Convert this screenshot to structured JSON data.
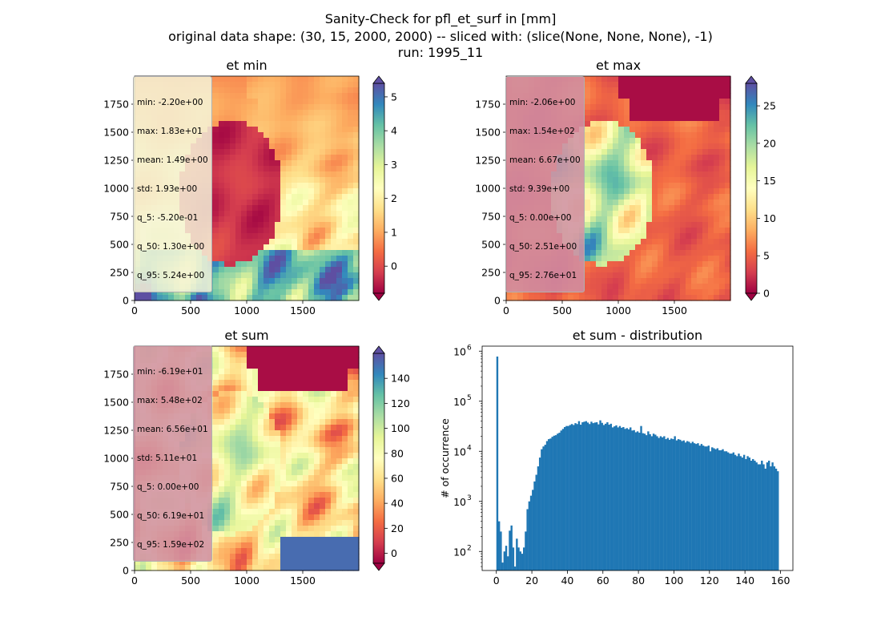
{
  "figure": {
    "title_lines": [
      "Sanity-Check for pfl_et_surf in [mm]",
      "original data shape: (30, 15, 2000, 2000) -- sliced with: (slice(None, None, None), -1)",
      "run: 1995_11"
    ]
  },
  "colors": {
    "hist_bar": "#1f77b4",
    "colormap": "Spectral",
    "colormap_stops": [
      "#9e0142",
      "#d53e4f",
      "#f46d43",
      "#fdae61",
      "#fee08b",
      "#ffffbf",
      "#e6f598",
      "#abdda4",
      "#66c2a5",
      "#3288bd",
      "#5e4fa2"
    ],
    "stats_box_light": "#f5f3d8",
    "stats_box_pink": "#cf8ea4"
  },
  "chart_data": [
    {
      "type": "heatmap",
      "title": "et min",
      "xlim": [
        0,
        2000
      ],
      "ylim": [
        0,
        2000
      ],
      "xticks": [
        "0",
        "500",
        "1000",
        "1500"
      ],
      "yticks": [
        "0",
        "250",
        "500",
        "750",
        "1000",
        "1250",
        "1500",
        "1750"
      ],
      "colorbar": {
        "range": [
          -0.8,
          5.4
        ],
        "ticks": [
          "0",
          "1",
          "2",
          "3",
          "4",
          "5"
        ],
        "tick_values": [
          0,
          1,
          2,
          3,
          4,
          5
        ],
        "extend": "both"
      },
      "stats": [
        "min: -2.20e+00",
        "max: 1.83e+01",
        "mean: 1.49e+00",
        "std: 1.93e+00",
        "q_5: -5.20e-01",
        "q_50: 1.30e+00",
        "q_95: 5.24e+00"
      ]
    },
    {
      "type": "heatmap",
      "title": "et max",
      "xlim": [
        0,
        2000
      ],
      "ylim": [
        0,
        2000
      ],
      "xticks": [
        "0",
        "500",
        "1000",
        "1500"
      ],
      "yticks": [
        "0",
        "250",
        "500",
        "750",
        "1000",
        "1250",
        "1500",
        "1750"
      ],
      "colorbar": {
        "range": [
          0,
          28
        ],
        "ticks": [
          "0",
          "5",
          "10",
          "15",
          "20",
          "25"
        ],
        "tick_values": [
          0,
          5,
          10,
          15,
          20,
          25
        ],
        "extend": "both"
      },
      "stats": [
        "min: -2.06e+00",
        "max: 1.54e+02",
        "mean: 6.67e+00",
        "std: 9.39e+00",
        "q_5: 0.00e+00",
        "q_50: 2.51e+00",
        "q_95: 2.76e+01"
      ]
    },
    {
      "type": "heatmap",
      "title": "et sum",
      "xlim": [
        0,
        2000
      ],
      "ylim": [
        0,
        2000
      ],
      "xticks": [
        "0",
        "500",
        "1000",
        "1500"
      ],
      "yticks": [
        "0",
        "250",
        "500",
        "750",
        "1000",
        "1250",
        "1500",
        "1750"
      ],
      "colorbar": {
        "range": [
          -8,
          160
        ],
        "ticks": [
          "0",
          "20",
          "40",
          "60",
          "80",
          "100",
          "120",
          "140"
        ],
        "tick_values": [
          0,
          20,
          40,
          60,
          80,
          100,
          120,
          140
        ],
        "extend": "both"
      },
      "stats": [
        "min: -6.19e+01",
        "max: 5.48e+02",
        "mean: 6.56e+01",
        "std: 5.11e+01",
        "q_5: 0.00e+00",
        "q_50: 6.19e+01",
        "q_95: 1.59e+02"
      ]
    },
    {
      "type": "bar",
      "title": "et sum - distribution",
      "ylabel": "# of occurrence",
      "yscale": "log",
      "xlim": [
        -8,
        167
      ],
      "ylim_log10": [
        1.62,
        6.1
      ],
      "xticks": [
        "0",
        "20",
        "40",
        "60",
        "80",
        "100",
        "120",
        "140",
        "160"
      ],
      "xtick_values": [
        0,
        20,
        40,
        60,
        80,
        100,
        120,
        140,
        160
      ],
      "yticks_exp": [
        2,
        3,
        4,
        5,
        6
      ],
      "bin_width": 1,
      "bin_starts": [
        0,
        1,
        2,
        3,
        4,
        5,
        6,
        7,
        8,
        9,
        10,
        11,
        12,
        13,
        14,
        15,
        16,
        17,
        18,
        19,
        20,
        21,
        22,
        23,
        24,
        25,
        26,
        27,
        28,
        29,
        30,
        31,
        32,
        33,
        34,
        35,
        36,
        37,
        38,
        39,
        40,
        41,
        42,
        43,
        44,
        45,
        46,
        47,
        48,
        49,
        50,
        51,
        52,
        53,
        54,
        55,
        56,
        57,
        58,
        59,
        60,
        61,
        62,
        63,
        64,
        65,
        66,
        67,
        68,
        69,
        70,
        71,
        72,
        73,
        74,
        75,
        76,
        77,
        78,
        79,
        80,
        81,
        82,
        83,
        84,
        85,
        86,
        87,
        88,
        89,
        90,
        91,
        92,
        93,
        94,
        95,
        96,
        97,
        98,
        99,
        100,
        101,
        102,
        103,
        104,
        105,
        106,
        107,
        108,
        109,
        110,
        111,
        112,
        113,
        114,
        115,
        116,
        117,
        118,
        119,
        120,
        121,
        122,
        123,
        124,
        125,
        126,
        127,
        128,
        129,
        130,
        131,
        132,
        133,
        134,
        135,
        136,
        137,
        138,
        139,
        140,
        141,
        142,
        143,
        144,
        145,
        146,
        147,
        148,
        149,
        150,
        151,
        152,
        153,
        154,
        155,
        156,
        157,
        158
      ],
      "counts": [
        780000,
        400,
        250,
        60,
        100,
        130,
        80,
        260,
        330,
        120,
        50,
        180,
        120,
        100,
        90,
        120,
        250,
        700,
        1000,
        1300,
        1700,
        2500,
        3400,
        5000,
        7500,
        11000,
        12500,
        13500,
        16000,
        17500,
        18000,
        19500,
        20500,
        21000,
        22500,
        23500,
        26000,
        28000,
        30500,
        32000,
        32000,
        33500,
        35000,
        33500,
        36500,
        35000,
        40000,
        34000,
        38000,
        39000,
        40000,
        37500,
        35000,
        39000,
        36500,
        37500,
        38000,
        34500,
        41500,
        37000,
        33500,
        35500,
        38000,
        34000,
        35500,
        30000,
        31500,
        33000,
        30000,
        32000,
        29500,
        30500,
        28000,
        29000,
        27500,
        30000,
        26000,
        26500,
        24000,
        25000,
        23500,
        32000,
        23000,
        22500,
        21000,
        25000,
        22000,
        20000,
        22500,
        21500,
        20000,
        18500,
        20000,
        19000,
        20000,
        17500,
        18500,
        17000,
        18000,
        17500,
        20000,
        16500,
        17500,
        17000,
        16000,
        16500,
        15000,
        16000,
        15500,
        14500,
        15500,
        14500,
        14000,
        14500,
        13000,
        14000,
        13000,
        12500,
        12500,
        13000,
        10000,
        12000,
        11500,
        11000,
        11500,
        10500,
        10500,
        11000,
        10000,
        10000,
        9500,
        9000,
        9000,
        9500,
        8500,
        8000,
        9000,
        8000,
        7500,
        8500,
        7000,
        8000,
        7500,
        6500,
        7000,
        6500,
        6000,
        5500,
        5500,
        6500,
        5500,
        4500,
        6000,
        6500,
        5000,
        6000,
        5000,
        4500,
        4000,
        5000,
        5000,
        4000,
        3500
      ]
    }
  ]
}
